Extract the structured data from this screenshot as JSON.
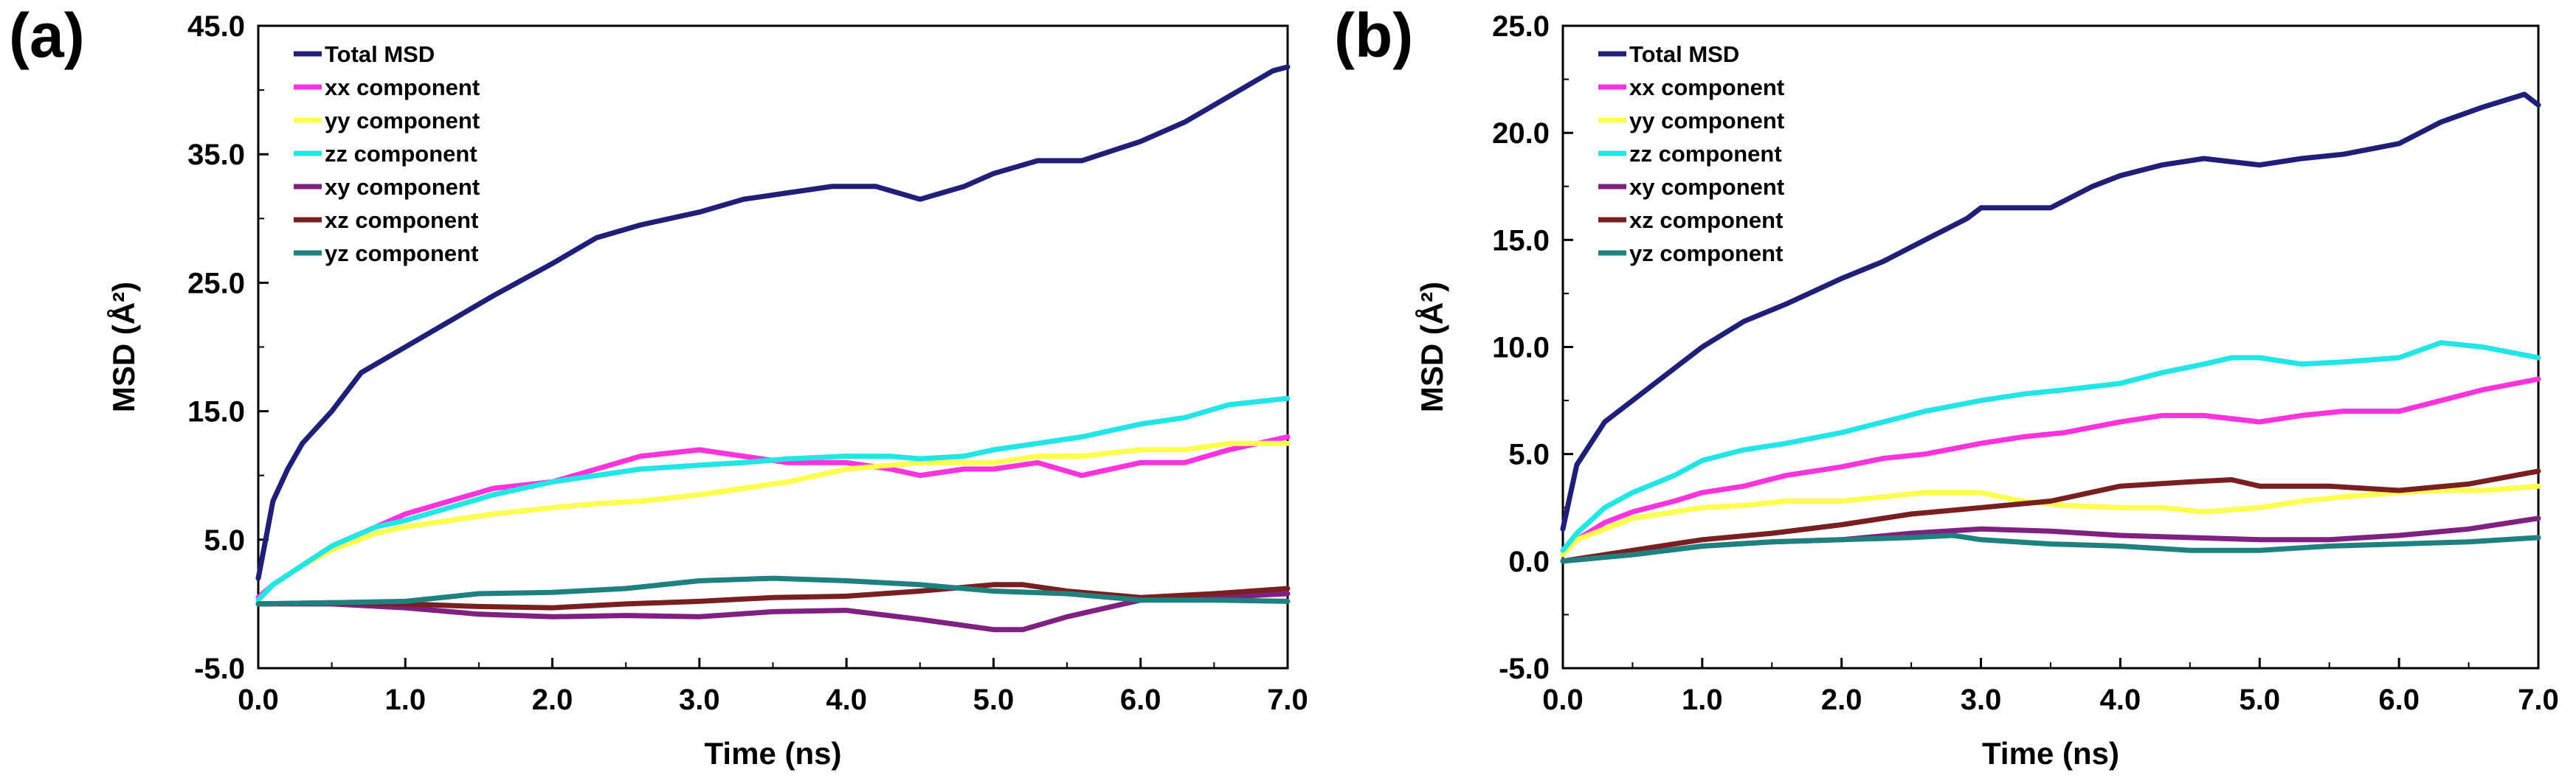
{
  "figure": {
    "panels": [
      {
        "label": "(a)"
      },
      {
        "label": "(b)"
      }
    ]
  },
  "chart_data": [
    {
      "type": "line",
      "panel": "(a)",
      "xlabel": "Time (ns)",
      "ylabel": "MSD (Å²)",
      "xlim": [
        0,
        7
      ],
      "ylim": [
        -5,
        45
      ],
      "xticks": [
        0,
        1,
        2,
        3,
        4,
        5,
        6,
        7
      ],
      "xtick_labels": [
        "0.0",
        "1.0",
        "2.0",
        "3.0",
        "4.0",
        "5.0",
        "6.0",
        "7.0"
      ],
      "yticks": [
        -5,
        5,
        15,
        25,
        35,
        45
      ],
      "ytick_labels": [
        "-5.0",
        "5.0",
        "15.0",
        "25.0",
        "35.0",
        "45.0"
      ],
      "legend_position": "top-left",
      "series": [
        {
          "name": "Total MSD",
          "color": "#1f1f7a",
          "x": [
            0,
            0.05,
            0.1,
            0.2,
            0.3,
            0.5,
            0.7,
            1.0,
            1.3,
            1.6,
            2.0,
            2.3,
            2.6,
            3.0,
            3.3,
            3.6,
            3.9,
            4.2,
            4.5,
            4.8,
            5.0,
            5.3,
            5.6,
            6.0,
            6.3,
            6.6,
            6.9,
            7.0
          ],
          "y": [
            2,
            5,
            8,
            10.5,
            12.5,
            15,
            18,
            20,
            22,
            24,
            26.5,
            28.5,
            29.5,
            30.5,
            31.5,
            32,
            32.5,
            32.5,
            31.5,
            32.5,
            33.5,
            34.5,
            34.5,
            36,
            37.5,
            39.5,
            41.5,
            41.8
          ]
        },
        {
          "name": "xx component",
          "color": "#ff33dd",
          "x": [
            0,
            0.1,
            0.3,
            0.5,
            0.8,
            1.0,
            1.3,
            1.6,
            2.0,
            2.3,
            2.6,
            3.0,
            3.3,
            3.6,
            4.0,
            4.3,
            4.5,
            4.8,
            5.0,
            5.3,
            5.6,
            6.0,
            6.3,
            6.6,
            7.0
          ],
          "y": [
            0.5,
            1.5,
            3,
            4.5,
            6,
            7,
            8,
            9,
            9.5,
            10.5,
            11.5,
            12,
            11.5,
            11,
            11,
            10.5,
            10,
            10.5,
            10.5,
            11,
            10,
            11,
            11,
            12,
            13
          ]
        },
        {
          "name": "yy component",
          "color": "#ffff4d",
          "x": [
            0,
            0.1,
            0.3,
            0.5,
            0.8,
            1.0,
            1.3,
            1.6,
            2.0,
            2.3,
            2.6,
            3.0,
            3.3,
            3.6,
            4.0,
            4.3,
            4.5,
            4.8,
            5.0,
            5.3,
            5.6,
            6.0,
            6.3,
            6.6,
            7.0
          ],
          "y": [
            0.3,
            1.5,
            3,
            4.2,
            5.5,
            6,
            6.5,
            7,
            7.5,
            7.8,
            8,
            8.5,
            9,
            9.5,
            10.5,
            10.8,
            11,
            11,
            11,
            11.5,
            11.5,
            12,
            12,
            12.5,
            12.5
          ]
        },
        {
          "name": "zz component",
          "color": "#22e5e5",
          "x": [
            0,
            0.1,
            0.3,
            0.5,
            0.8,
            1.0,
            1.3,
            1.6,
            2.0,
            2.3,
            2.6,
            3.0,
            3.3,
            3.6,
            4.0,
            4.3,
            4.5,
            4.8,
            5.0,
            5.3,
            5.6,
            6.0,
            6.3,
            6.6,
            7.0
          ],
          "y": [
            0.3,
            1.5,
            3,
            4.5,
            6,
            6.5,
            7.5,
            8.5,
            9.5,
            10,
            10.5,
            10.8,
            11,
            11.3,
            11.5,
            11.5,
            11.3,
            11.5,
            12,
            12.5,
            13,
            14,
            14.5,
            15.5,
            16
          ]
        },
        {
          "name": "xy component",
          "color": "#802080",
          "x": [
            0,
            0.5,
            1.0,
            1.5,
            2.0,
            2.5,
            3.0,
            3.5,
            4.0,
            4.5,
            5.0,
            5.2,
            5.5,
            6.0,
            6.5,
            7.0
          ],
          "y": [
            0,
            0,
            -0.3,
            -0.8,
            -1,
            -0.9,
            -1,
            -0.6,
            -0.5,
            -1.2,
            -2,
            -2,
            -1,
            0.3,
            0.5,
            0.8
          ]
        },
        {
          "name": "xz component",
          "color": "#7a1f1f",
          "x": [
            0,
            0.5,
            1.0,
            1.5,
            2.0,
            2.5,
            3.0,
            3.5,
            4.0,
            4.5,
            5.0,
            5.2,
            5.5,
            6.0,
            6.5,
            7.0
          ],
          "y": [
            0,
            0.1,
            0,
            -0.2,
            -0.3,
            0,
            0.2,
            0.5,
            0.6,
            1,
            1.5,
            1.5,
            1,
            0.5,
            0.8,
            1.2
          ]
        },
        {
          "name": "yz component",
          "color": "#1f8080",
          "x": [
            0,
            0.5,
            1.0,
            1.5,
            2.0,
            2.5,
            3.0,
            3.5,
            4.0,
            4.5,
            5.0,
            5.5,
            6.0,
            6.5,
            7.0
          ],
          "y": [
            0,
            0.1,
            0.2,
            0.8,
            0.9,
            1.2,
            1.8,
            2,
            1.8,
            1.5,
            1,
            0.8,
            0.3,
            0.3,
            0.2
          ]
        }
      ]
    },
    {
      "type": "line",
      "panel": "(b)",
      "xlabel": "Time (ns)",
      "ylabel": "MSD (Å²)",
      "xlim": [
        0,
        7
      ],
      "ylim": [
        -5,
        25
      ],
      "xticks": [
        0,
        1,
        2,
        3,
        4,
        5,
        6,
        7
      ],
      "xtick_labels": [
        "0.0",
        "1.0",
        "2.0",
        "3.0",
        "4.0",
        "5.0",
        "6.0",
        "7.0"
      ],
      "yticks": [
        -5,
        0,
        5,
        10,
        15,
        20,
        25
      ],
      "ytick_labels": [
        "-5.0",
        "0.0",
        "5.0",
        "10.0",
        "15.0",
        "20.0",
        "25.0"
      ],
      "legend_position": "top-left",
      "series": [
        {
          "name": "Total MSD",
          "color": "#1f1f7a",
          "x": [
            0,
            0.05,
            0.1,
            0.2,
            0.3,
            0.5,
            0.7,
            1.0,
            1.3,
            1.6,
            2.0,
            2.3,
            2.6,
            2.9,
            3.0,
            3.2,
            3.5,
            3.8,
            4.0,
            4.3,
            4.6,
            5.0,
            5.3,
            5.6,
            6.0,
            6.3,
            6.6,
            6.9,
            7.0
          ],
          "y": [
            1.5,
            3,
            4.5,
            5.5,
            6.5,
            7.5,
            8.5,
            10,
            11.2,
            12,
            13.2,
            14,
            15,
            16,
            16.5,
            16.5,
            16.5,
            17.5,
            18,
            18.5,
            18.8,
            18.5,
            18.8,
            19,
            19.5,
            20.5,
            21.2,
            21.8,
            21.3
          ]
        },
        {
          "name": "xx component",
          "color": "#ff33dd",
          "x": [
            0,
            0.1,
            0.3,
            0.5,
            0.8,
            1.0,
            1.3,
            1.6,
            2.0,
            2.3,
            2.6,
            3.0,
            3.3,
            3.6,
            4.0,
            4.3,
            4.6,
            5.0,
            5.3,
            5.6,
            6.0,
            6.3,
            6.6,
            7.0
          ],
          "y": [
            0.5,
            1,
            1.8,
            2.3,
            2.8,
            3.2,
            3.5,
            4,
            4.4,
            4.8,
            5,
            5.5,
            5.8,
            6,
            6.5,
            6.8,
            6.8,
            6.5,
            6.8,
            7,
            7,
            7.5,
            8,
            8.5
          ]
        },
        {
          "name": "yy component",
          "color": "#ffff4d",
          "x": [
            0,
            0.1,
            0.3,
            0.5,
            0.8,
            1.0,
            1.3,
            1.6,
            2.0,
            2.3,
            2.6,
            3.0,
            3.3,
            3.6,
            4.0,
            4.3,
            4.6,
            5.0,
            5.3,
            5.6,
            6.0,
            6.3,
            6.6,
            7.0
          ],
          "y": [
            0.3,
            1,
            1.5,
            2,
            2.3,
            2.5,
            2.6,
            2.8,
            2.8,
            3,
            3.2,
            3.2,
            2.8,
            2.6,
            2.5,
            2.5,
            2.3,
            2.5,
            2.8,
            3,
            3.2,
            3.3,
            3.3,
            3.5
          ]
        },
        {
          "name": "zz component",
          "color": "#22e5e5",
          "x": [
            0,
            0.1,
            0.3,
            0.5,
            0.8,
            1.0,
            1.3,
            1.6,
            2.0,
            2.3,
            2.6,
            3.0,
            3.3,
            3.6,
            4.0,
            4.3,
            4.6,
            4.8,
            5.0,
            5.3,
            5.6,
            6.0,
            6.3,
            6.6,
            7.0
          ],
          "y": [
            0.5,
            1.3,
            2.5,
            3.2,
            4,
            4.7,
            5.2,
            5.5,
            6,
            6.5,
            7,
            7.5,
            7.8,
            8,
            8.3,
            8.8,
            9.2,
            9.5,
            9.5,
            9.2,
            9.3,
            9.5,
            10.2,
            10,
            9.5
          ]
        },
        {
          "name": "xy component",
          "color": "#802080",
          "x": [
            0,
            0.5,
            1.0,
            1.5,
            2.0,
            2.5,
            3.0,
            3.5,
            4.0,
            4.5,
            5.0,
            5.5,
            6.0,
            6.5,
            7.0
          ],
          "y": [
            0,
            0.3,
            0.7,
            0.9,
            1,
            1.3,
            1.5,
            1.4,
            1.2,
            1.1,
            1,
            1,
            1.2,
            1.5,
            2
          ]
        },
        {
          "name": "xz component",
          "color": "#7a1f1f",
          "x": [
            0,
            0.5,
            1.0,
            1.5,
            2.0,
            2.5,
            3.0,
            3.5,
            4.0,
            4.5,
            4.8,
            5.0,
            5.5,
            6.0,
            6.5,
            7.0
          ],
          "y": [
            0,
            0.5,
            1,
            1.3,
            1.7,
            2.2,
            2.5,
            2.8,
            3.5,
            3.7,
            3.8,
            3.5,
            3.5,
            3.3,
            3.6,
            4.2
          ]
        },
        {
          "name": "yz component",
          "color": "#1f8080",
          "x": [
            0,
            0.5,
            1.0,
            1.5,
            2.0,
            2.5,
            2.8,
            3.0,
            3.5,
            4.0,
            4.5,
            5.0,
            5.5,
            6.0,
            6.5,
            7.0
          ],
          "y": [
            0,
            0.3,
            0.7,
            0.9,
            1,
            1.1,
            1.2,
            1,
            0.8,
            0.7,
            0.5,
            0.5,
            0.7,
            0.8,
            0.9,
            1.1
          ]
        }
      ]
    }
  ]
}
